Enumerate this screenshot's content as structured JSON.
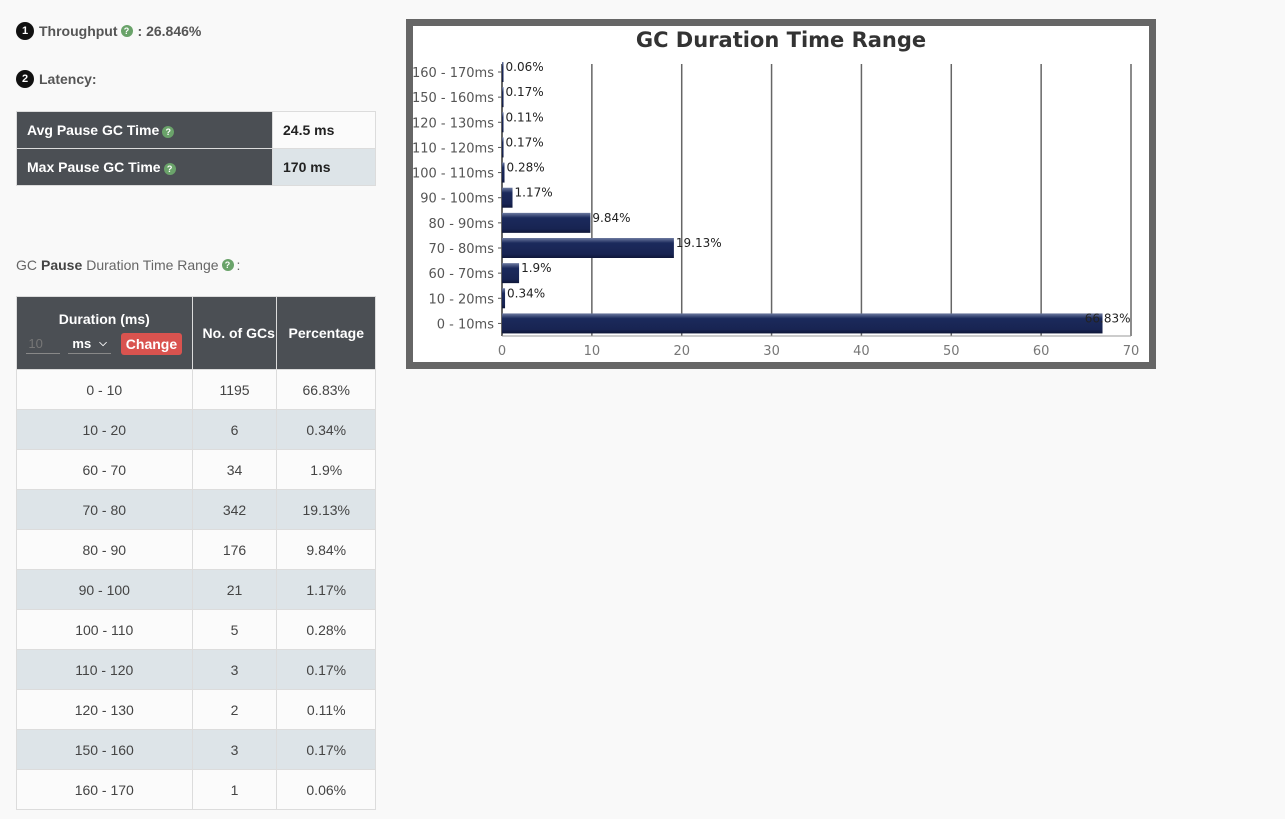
{
  "kpis": {
    "throughput_label": "Throughput",
    "throughput_value": ": 26.846%",
    "latency_label": "Latency:",
    "num1": "1",
    "num2": "2"
  },
  "latency_table": [
    {
      "label": "Avg Pause GC Time",
      "value": "24.5 ms"
    },
    {
      "label": "Max Pause GC Time",
      "value": "170 ms"
    }
  ],
  "section": {
    "prefix": "GC",
    "bold": "Pause",
    "suffix": "Duration Time Range",
    "colon": ":"
  },
  "duration_table": {
    "headers": {
      "duration": "Duration (ms)",
      "count": "No. of GCs",
      "pct": "Percentage"
    },
    "interval_value": "10",
    "unit": "ms",
    "change_label": "Change",
    "rows": [
      {
        "range": "0 - 10",
        "count": "1195",
        "pct": "66.83%"
      },
      {
        "range": "10 - 20",
        "count": "6",
        "pct": "0.34%"
      },
      {
        "range": "60 - 70",
        "count": "34",
        "pct": "1.9%"
      },
      {
        "range": "70 - 80",
        "count": "342",
        "pct": "19.13%"
      },
      {
        "range": "80 - 90",
        "count": "176",
        "pct": "9.84%"
      },
      {
        "range": "90 - 100",
        "count": "21",
        "pct": "1.17%"
      },
      {
        "range": "100 - 110",
        "count": "5",
        "pct": "0.28%"
      },
      {
        "range": "110 - 120",
        "count": "3",
        "pct": "0.17%"
      },
      {
        "range": "120 - 130",
        "count": "2",
        "pct": "0.11%"
      },
      {
        "range": "150 - 160",
        "count": "3",
        "pct": "0.17%"
      },
      {
        "range": "160 - 170",
        "count": "1",
        "pct": "0.06%"
      }
    ]
  },
  "colors": {
    "bar": "#1b2a5c",
    "help": "#6aa36a",
    "change": "#d9534f"
  },
  "chart_data": {
    "type": "bar",
    "orientation": "horizontal",
    "title": "GC Duration Time Range",
    "categories": [
      "160 - 170ms",
      "150 - 160ms",
      "120 - 130ms",
      "110 - 120ms",
      "100 - 110ms",
      "90 - 100ms",
      "80 - 90ms",
      "70 - 80ms",
      "60 - 70ms",
      "10 - 20ms",
      "0 - 10ms"
    ],
    "values": [
      0.06,
      0.17,
      0.11,
      0.17,
      0.28,
      1.17,
      9.84,
      19.13,
      1.9,
      0.34,
      66.83
    ],
    "labels": [
      "0.06%",
      "0.17%",
      "0.11%",
      "0.17%",
      "0.28%",
      "1.17%",
      "9.84%",
      "19.13%",
      "1.9%",
      "0.34%",
      "66.83%"
    ],
    "xticks": [
      0,
      10,
      20,
      30,
      40,
      50,
      60,
      70
    ],
    "xlim": [
      0,
      70
    ],
    "grid": true
  }
}
